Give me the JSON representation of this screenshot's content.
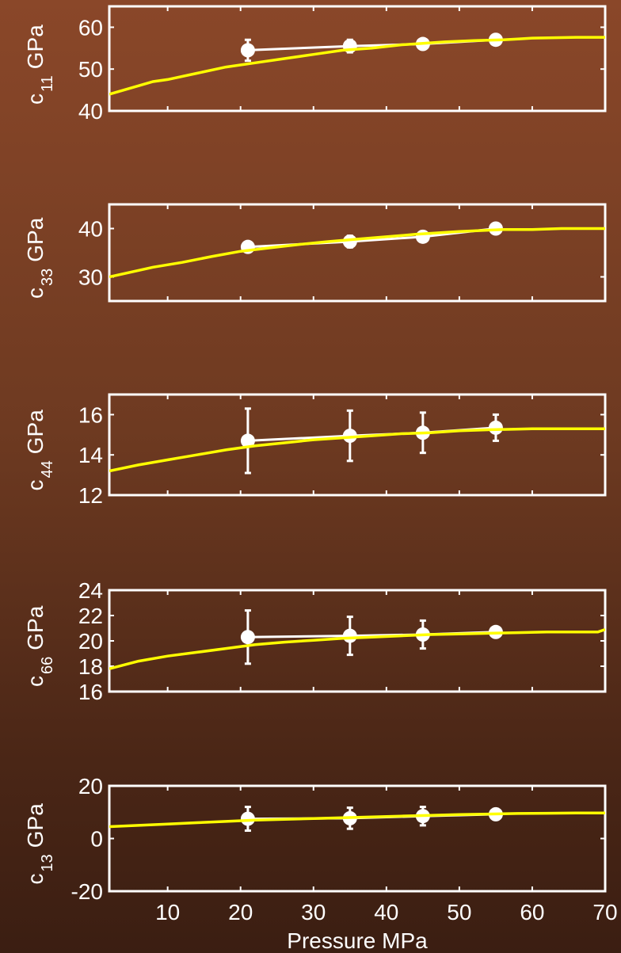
{
  "chart_data": [
    {
      "type": "line",
      "ylabel": {
        "main": "c",
        "sub": "11",
        "unit": "GPa"
      },
      "xlim": [
        2,
        70
      ],
      "ylim": [
        40,
        65
      ],
      "yticks": [
        40,
        50,
        60
      ],
      "ytick_labels": [
        "40",
        "50",
        "60"
      ],
      "series": [
        {
          "color": "#ffffff",
          "style": "markers-line-errorbars",
          "x": [
            21,
            35,
            45,
            55
          ],
          "y": [
            54.5,
            55.5,
            56,
            57
          ],
          "err": [
            2.5,
            1.5,
            1,
            0.5
          ]
        },
        {
          "color": "#ffff00",
          "style": "line",
          "x": [
            2,
            6,
            8,
            10,
            14,
            18,
            22,
            26,
            30,
            34,
            38,
            42,
            48,
            52,
            56,
            58,
            60,
            66,
            70
          ],
          "y": [
            44,
            46,
            47,
            47.5,
            49,
            50.5,
            51.5,
            52.5,
            53.5,
            54.5,
            55,
            55.8,
            56.5,
            56.8,
            57,
            57.2,
            57.4,
            57.6,
            57.6
          ]
        }
      ]
    },
    {
      "type": "line",
      "ylabel": {
        "main": "c",
        "sub": "33",
        "unit": "GPa"
      },
      "xlim": [
        2,
        70
      ],
      "ylim": [
        25,
        45
      ],
      "yticks": [
        30,
        40
      ],
      "ytick_labels": [
        "30",
        "40"
      ],
      "series": [
        {
          "color": "#ffffff",
          "style": "markers-line-errorbars",
          "x": [
            21,
            35,
            45,
            55
          ],
          "y": [
            36.2,
            37.3,
            38.3,
            40
          ],
          "err": [
            1.0,
            1.2,
            0.8,
            0.5
          ]
        },
        {
          "color": "#ffff00",
          "style": "line",
          "x": [
            2,
            8,
            12,
            16,
            20,
            24,
            28,
            32,
            36,
            40,
            44,
            50,
            56,
            60,
            64,
            70
          ],
          "y": [
            30,
            32,
            33,
            34.2,
            35.3,
            36,
            36.7,
            37.3,
            37.8,
            38.3,
            38.8,
            39.4,
            39.8,
            39.8,
            40,
            40
          ]
        }
      ]
    },
    {
      "type": "line",
      "ylabel": {
        "main": "c",
        "sub": "44",
        "unit": "GPa"
      },
      "xlim": [
        2,
        70
      ],
      "ylim": [
        12,
        17
      ],
      "yticks": [
        12,
        14,
        16
      ],
      "ytick_labels": [
        "12",
        "14",
        "16"
      ],
      "series": [
        {
          "color": "#ffffff",
          "style": "markers-line-errorbars",
          "x": [
            21,
            35,
            45,
            55
          ],
          "y": [
            14.7,
            14.95,
            15.1,
            15.35
          ],
          "err": [
            1.6,
            1.25,
            1.0,
            0.65
          ]
        },
        {
          "color": "#ffff00",
          "style": "line",
          "x": [
            2,
            6,
            10,
            14,
            18,
            22,
            26,
            30,
            34,
            38,
            42,
            46,
            50,
            54,
            60,
            66,
            70
          ],
          "y": [
            13.2,
            13.5,
            13.75,
            14.0,
            14.25,
            14.45,
            14.6,
            14.75,
            14.85,
            14.95,
            15.05,
            15.1,
            15.2,
            15.25,
            15.3,
            15.3,
            15.3
          ]
        }
      ]
    },
    {
      "type": "line",
      "ylabel": {
        "main": "c",
        "sub": "66",
        "unit": "GPa"
      },
      "xlim": [
        2,
        70
      ],
      "ylim": [
        16,
        24
      ],
      "yticks": [
        16,
        18,
        20,
        22,
        24
      ],
      "ytick_labels": [
        "16",
        "18",
        "20",
        "22",
        "24"
      ],
      "series": [
        {
          "color": "#ffffff",
          "style": "markers-line-errorbars",
          "x": [
            21,
            35,
            45,
            55
          ],
          "y": [
            20.3,
            20.4,
            20.5,
            20.7
          ],
          "err": [
            2.1,
            1.5,
            1.1,
            0.4
          ]
        },
        {
          "color": "#ffff00",
          "style": "line",
          "x": [
            2,
            6,
            10,
            14,
            18,
            22,
            26,
            30,
            34,
            38,
            42,
            46,
            50,
            54,
            58,
            62,
            66,
            69,
            70
          ],
          "y": [
            17.8,
            18.4,
            18.8,
            19.1,
            19.4,
            19.7,
            19.9,
            20.05,
            20.2,
            20.3,
            20.4,
            20.5,
            20.55,
            20.6,
            20.65,
            20.7,
            20.7,
            20.7,
            20.9
          ]
        }
      ]
    },
    {
      "type": "line",
      "ylabel": {
        "main": "c",
        "sub": "13",
        "unit": "GPa"
      },
      "xlabel": "Pressure MPa",
      "xlim": [
        2,
        70
      ],
      "ylim": [
        -20,
        20
      ],
      "yticks": [
        -20,
        0,
        20
      ],
      "ytick_labels": [
        "-20",
        "0",
        "20"
      ],
      "xticks": [
        10,
        20,
        30,
        40,
        50,
        60,
        70
      ],
      "xtick_labels": [
        "10",
        "20",
        "30",
        "40",
        "50",
        "60",
        "70"
      ],
      "series": [
        {
          "color": "#ffffff",
          "style": "markers-line-errorbars",
          "x": [
            21,
            35,
            45,
            55
          ],
          "y": [
            7.5,
            7.7,
            8.5,
            9.2
          ],
          "err": [
            4.5,
            4.0,
            3.5,
            2.0
          ]
        },
        {
          "color": "#ffff00",
          "style": "line",
          "x": [
            2,
            6,
            10,
            14,
            18,
            22,
            26,
            30,
            34,
            38,
            42,
            46,
            50,
            54,
            58,
            62,
            66,
            70
          ],
          "y": [
            4.5,
            5,
            5.5,
            6,
            6.5,
            7,
            7.3,
            7.6,
            7.9,
            8.2,
            8.5,
            8.8,
            9.1,
            9.3,
            9.5,
            9.6,
            9.7,
            9.7
          ]
        }
      ]
    }
  ]
}
